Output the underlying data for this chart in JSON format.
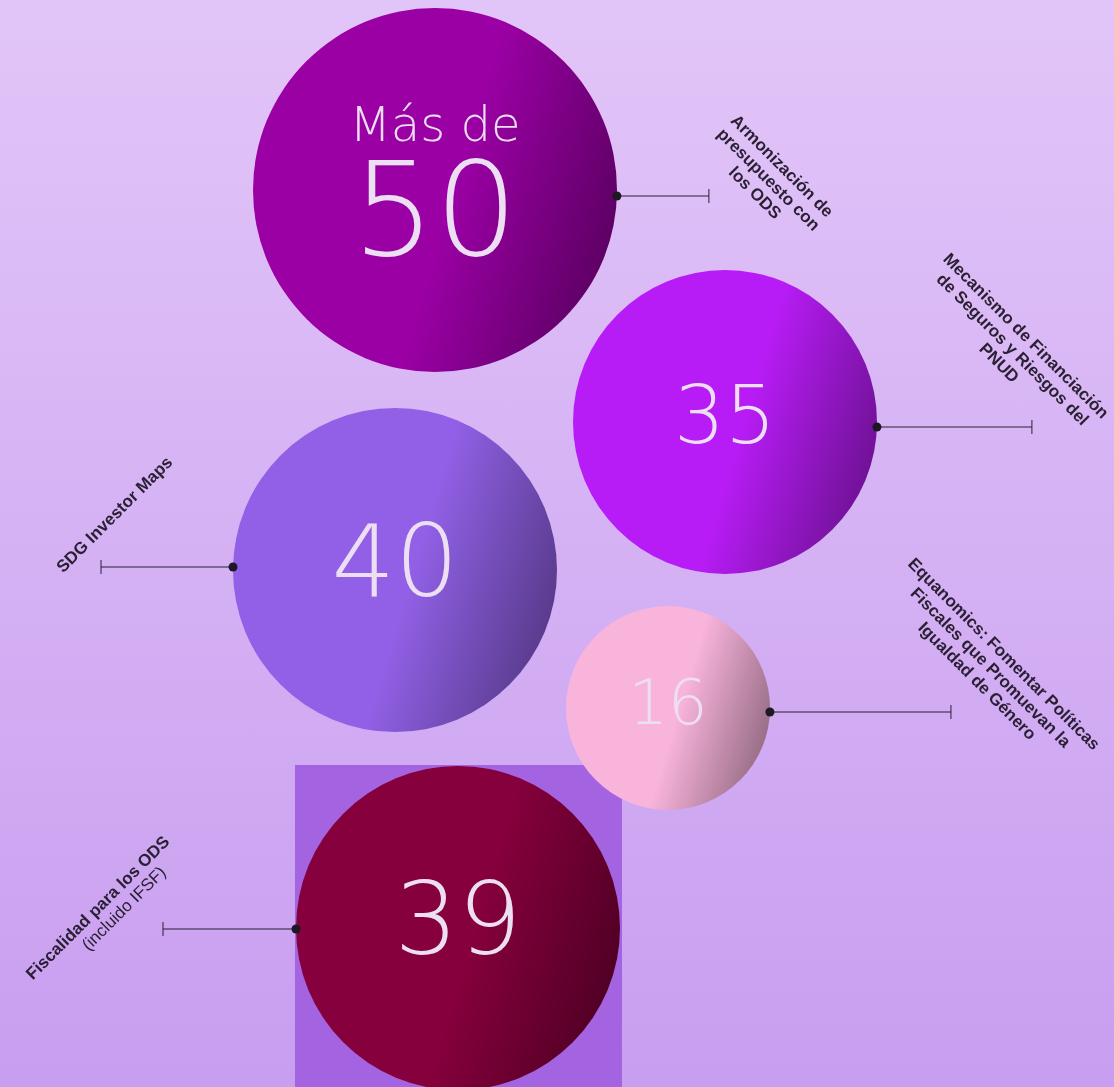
{
  "chart_data": {
    "type": "other",
    "categories": [
      "Armonización de presupuesto con los ODS",
      "Mecanismo de Financiación de Seguros y Riesgos del PNUD",
      "SDG Investor Maps",
      "Equanomics: Fomentar Políticas Fiscales que Promuevan la Igualdad de Género",
      "Fiscalidad para los ODS"
    ],
    "values": [
      50,
      35,
      40,
      16,
      39
    ],
    "colors": [
      "#9a00a4",
      "#b81cf6",
      "#9160e6",
      "#f9b4dc",
      "#85003c"
    ],
    "data_labels": true,
    "annotations": [
      "Más de",
      "(incluido IFSF)"
    ]
  }
}
